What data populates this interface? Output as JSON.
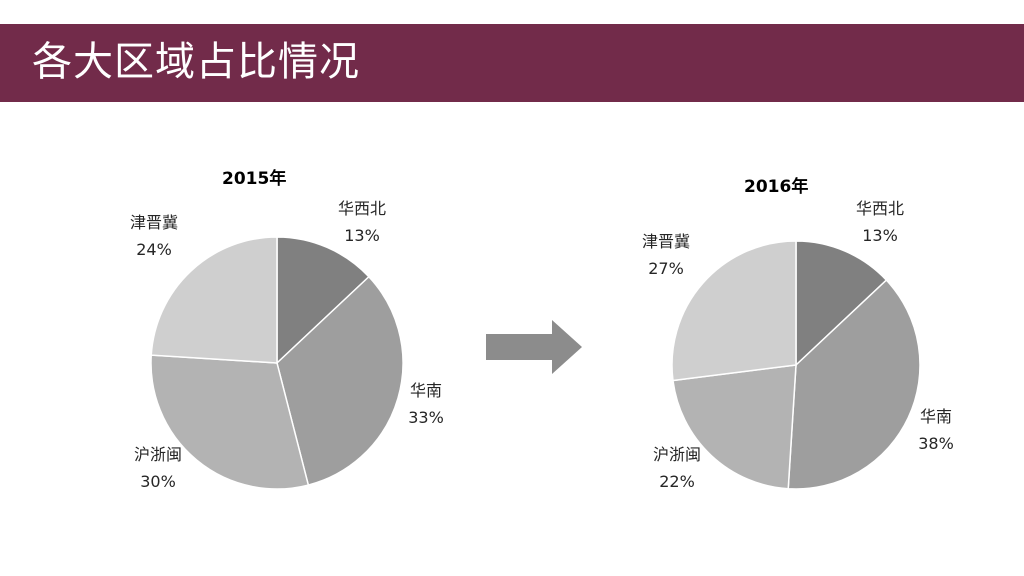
{
  "slide": {
    "title": "各大区域占比情况"
  },
  "chart_data": [
    {
      "type": "pie",
      "title": "2015年",
      "categories": [
        "华西北",
        "华南",
        "沪浙闽",
        "津晋冀"
      ],
      "values": [
        13,
        33,
        30,
        24
      ],
      "value_labels": [
        "13%",
        "33%",
        "30%",
        "24%"
      ],
      "colors": [
        "#808080",
        "#9e9e9e",
        "#b3b3b3",
        "#cfcfcf"
      ],
      "start_angle_deg": 0,
      "direction": "clockwise"
    },
    {
      "type": "pie",
      "title": "2016年",
      "categories": [
        "华西北",
        "华南",
        "沪浙闽",
        "津晋冀"
      ],
      "values": [
        13,
        38,
        22,
        27
      ],
      "value_labels": [
        "13%",
        "38%",
        "22%",
        "27%"
      ],
      "colors": [
        "#808080",
        "#9e9e9e",
        "#b3b3b3",
        "#cfcfcf"
      ],
      "start_angle_deg": 0,
      "direction": "clockwise"
    }
  ],
  "arrow": {
    "icon": "right-arrow-icon",
    "color": "#8c8c8c"
  }
}
